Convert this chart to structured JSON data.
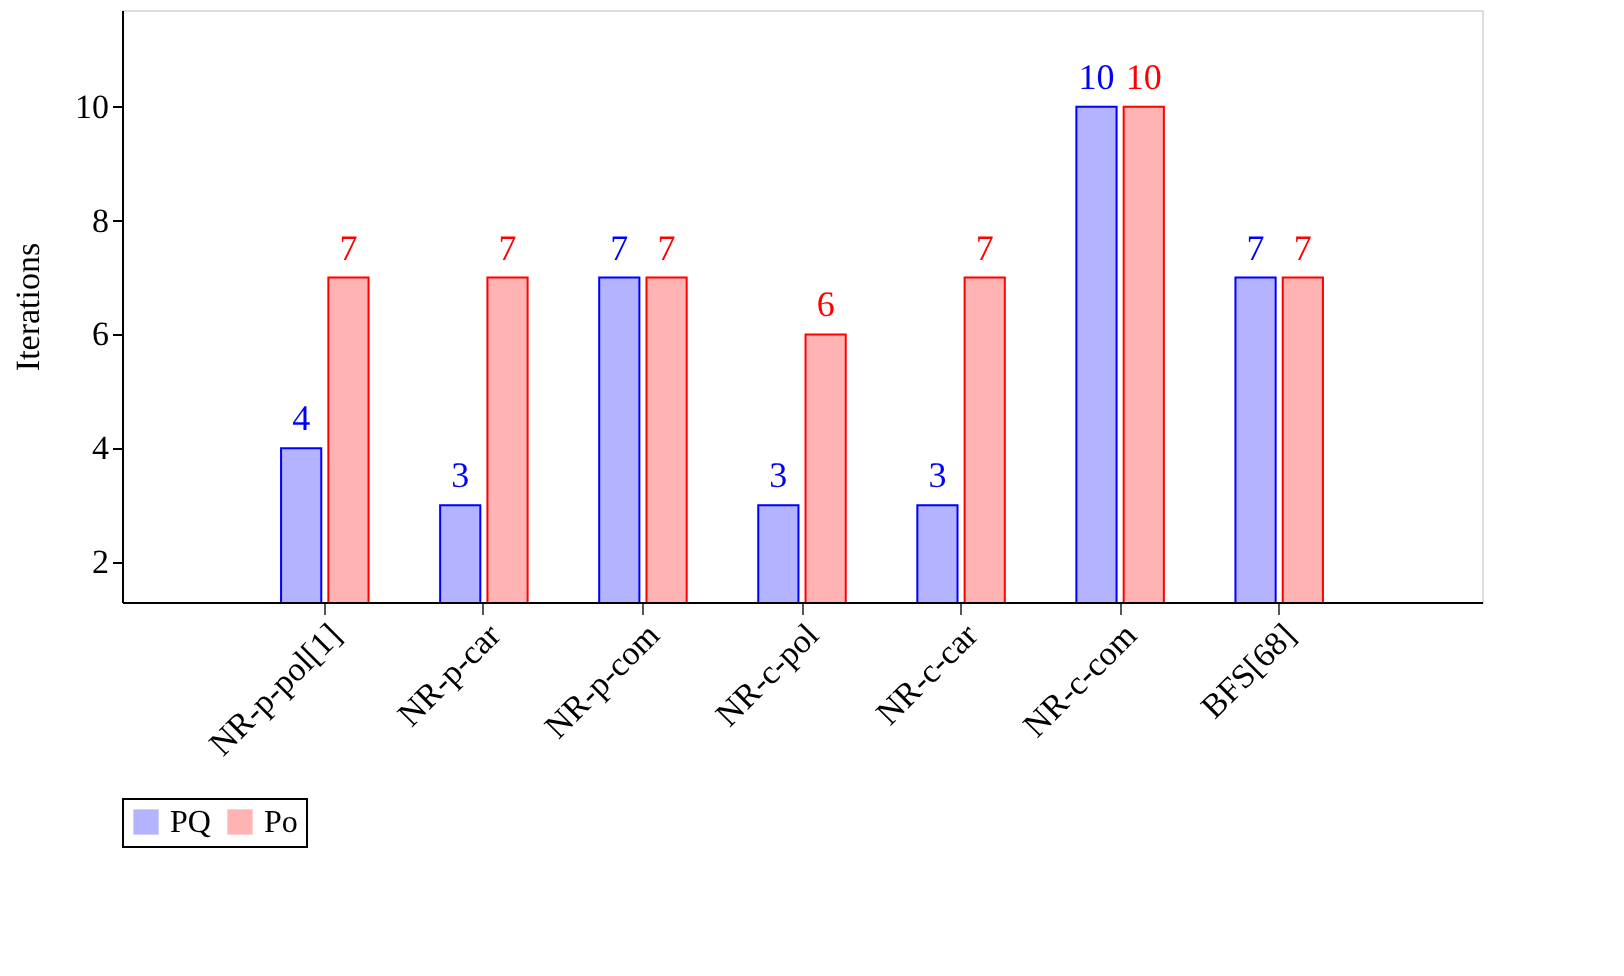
{
  "chart_data": {
    "type": "bar",
    "ylabel": "Iterations",
    "categories": [
      "NR-p-pol[1]",
      "NR-p-car",
      "NR-p-com",
      "NR-c-pol",
      "NR-c-car",
      "NR-c-com",
      "BFS[68]"
    ],
    "series": [
      {
        "name": "PQ",
        "color": "#b3b3ff",
        "values": [
          4,
          3,
          7,
          3,
          3,
          10,
          7
        ]
      },
      {
        "name": "Po",
        "color": "#ffb3b3",
        "values": [
          7,
          7,
          7,
          6,
          7,
          10,
          7
        ]
      }
    ],
    "ylim": [
      1.3,
      11.7
    ],
    "yticks": [
      2,
      4,
      6,
      8,
      10
    ],
    "grid": false,
    "legend": "bottom",
    "data_labels": true
  }
}
